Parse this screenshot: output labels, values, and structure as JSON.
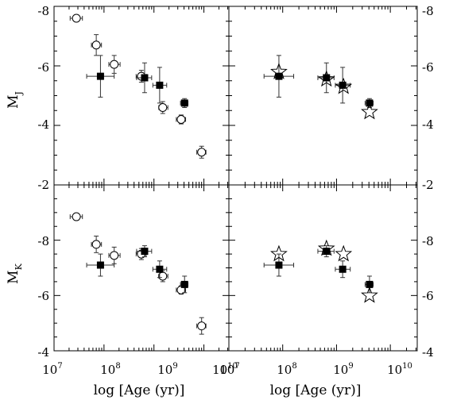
{
  "figure": {
    "xlabel": "log [Age (yr)]",
    "x_tick_labels": [
      "10",
      "10",
      "10",
      "10"
    ],
    "x_tick_exponents": [
      "7",
      "8",
      "9",
      "10"
    ],
    "top_y_tick_labels": [
      "-8",
      "-6",
      "-4",
      "-2"
    ],
    "bottom_y_tick_labels": [
      "-8",
      "-6",
      "-4"
    ],
    "top_ylabel": "M",
    "top_ylabel_sub": "J",
    "bottom_ylabel": "M",
    "bottom_ylabel_sub": "K"
  },
  "chart_data": [
    {
      "type": "scatter",
      "panel": "top-left",
      "x_scale": "log",
      "xlim": [
        10000000,
        31622776601
      ],
      "ylim": [
        -8,
        -2
      ],
      "y_inverted": true,
      "ylabel": "M_J",
      "grid": false,
      "series": [
        {
          "marker": "open-circle",
          "points": [
            {
              "x": 28000000,
              "y": -7.6,
              "xlo": 21000000,
              "xhi": 37000000,
              "ylo": -7.6,
              "yhi": -7.6
            },
            {
              "x": 70000000,
              "y": -6.7,
              "xlo": 56000000,
              "xhi": 89000000,
              "ylo": -7.05,
              "yhi": -6.35
            },
            {
              "x": 160000000,
              "y": -6.05,
              "xlo": 125000000,
              "xhi": 210000000,
              "ylo": -6.35,
              "yhi": -5.75
            },
            {
              "x": 560000000,
              "y": -5.65,
              "xlo": 440000000,
              "xhi": 700000000,
              "ylo": -5.85,
              "yhi": -5.45
            },
            {
              "x": 1500000000,
              "y": -4.6,
              "xlo": 1250000000,
              "xhi": 1900000000,
              "ylo": -4.8,
              "yhi": -4.4
            },
            {
              "x": 3500000000,
              "y": -4.2,
              "xlo": 2800000000,
              "xhi": 4300000000,
              "ylo": -4.35,
              "yhi": -4.05
            },
            {
              "x": 9000000000,
              "y": -3.1,
              "xlo": 7200000000,
              "xhi": 11000000000,
              "ylo": -3.3,
              "yhi": -2.9
            }
          ]
        },
        {
          "marker": "filled-square",
          "points": [
            {
              "x": 85000000,
              "y": -5.65,
              "xlo": 45000000,
              "xhi": 160000000,
              "ylo": -6.35,
              "yhi": -4.95
            },
            {
              "x": 650000000,
              "y": -5.6,
              "xlo": 450000000,
              "xhi": 900000000,
              "ylo": -6.1,
              "yhi": -5.1
            },
            {
              "x": 1300000000,
              "y": -5.35,
              "xlo": 950000000,
              "xhi": 1800000000,
              "ylo": -5.95,
              "yhi": -4.75
            },
            {
              "x": 4100000000,
              "y": -4.75,
              "xlo": 3400000000,
              "xhi": 4800000000,
              "ylo": -4.9,
              "yhi": -4.6
            }
          ]
        }
      ]
    },
    {
      "type": "scatter",
      "panel": "top-right",
      "x_scale": "log",
      "xlim": [
        10000000,
        31622776601
      ],
      "ylim": [
        -8,
        -2
      ],
      "y_inverted": true,
      "ylabel": "M_J",
      "grid": false,
      "series": [
        {
          "marker": "filled-square",
          "points": [
            {
              "x": 85000000,
              "y": -5.65,
              "xlo": 45000000,
              "xhi": 160000000,
              "ylo": -6.35,
              "yhi": -4.95
            },
            {
              "x": 650000000,
              "y": -5.6,
              "xlo": 450000000,
              "xhi": 900000000,
              "ylo": -6.1,
              "yhi": -5.1
            },
            {
              "x": 1300000000,
              "y": -5.35,
              "xlo": 950000000,
              "xhi": 1800000000,
              "ylo": -5.95,
              "yhi": -4.75
            },
            {
              "x": 4100000000,
              "y": -4.75,
              "xlo": 3400000000,
              "xhi": 4800000000,
              "ylo": -4.9,
              "yhi": -4.6
            }
          ]
        },
        {
          "marker": "open-star",
          "points": [
            {
              "x": 85000000,
              "y": -5.8
            },
            {
              "x": 650000000,
              "y": -5.55
            },
            {
              "x": 1350000000,
              "y": -5.3
            },
            {
              "x": 4100000000,
              "y": -4.45
            }
          ]
        }
      ]
    },
    {
      "type": "scatter",
      "panel": "bottom-left",
      "x_scale": "log",
      "xlim": [
        10000000,
        31622776601
      ],
      "ylim": [
        -10,
        -4
      ],
      "y_inverted": true,
      "ylabel": "M_K",
      "grid": false,
      "series": [
        {
          "marker": "open-circle",
          "points": [
            {
              "x": 28000000,
              "y": -8.85,
              "xlo": 21000000,
              "xhi": 37000000,
              "ylo": -8.85,
              "yhi": -8.85
            },
            {
              "x": 70000000,
              "y": -7.85,
              "xlo": 56000000,
              "xhi": 89000000,
              "ylo": -8.15,
              "yhi": -7.55
            },
            {
              "x": 160000000,
              "y": -7.45,
              "xlo": 125000000,
              "xhi": 210000000,
              "ylo": -7.75,
              "yhi": -7.15
            },
            {
              "x": 560000000,
              "y": -7.5,
              "xlo": 440000000,
              "xhi": 700000000,
              "ylo": -7.7,
              "yhi": -7.3
            },
            {
              "x": 1500000000,
              "y": -6.7,
              "xlo": 1250000000,
              "xhi": 1900000000,
              "ylo": -6.9,
              "yhi": -6.5
            },
            {
              "x": 3500000000,
              "y": -6.2,
              "xlo": 2800000000,
              "xhi": 4300000000,
              "ylo": -6.35,
              "yhi": -6.05
            },
            {
              "x": 9000000000,
              "y": -4.9,
              "xlo": 7200000000,
              "xhi": 11000000000,
              "ylo": -5.2,
              "yhi": -4.6
            }
          ]
        },
        {
          "marker": "filled-square",
          "points": [
            {
              "x": 85000000,
              "y": -7.1,
              "xlo": 45000000,
              "xhi": 160000000,
              "ylo": -7.5,
              "yhi": -6.7
            },
            {
              "x": 650000000,
              "y": -7.6,
              "xlo": 450000000,
              "xhi": 900000000,
              "ylo": -7.8,
              "yhi": -7.4
            },
            {
              "x": 1300000000,
              "y": -6.95,
              "xlo": 950000000,
              "xhi": 1800000000,
              "ylo": -7.25,
              "yhi": -6.65
            },
            {
              "x": 4100000000,
              "y": -6.4,
              "xlo": 3400000000,
              "xhi": 4800000000,
              "ylo": -6.7,
              "yhi": -6.1
            }
          ]
        }
      ]
    },
    {
      "type": "scatter",
      "panel": "bottom-right",
      "x_scale": "log",
      "xlim": [
        10000000,
        31622776601
      ],
      "ylim": [
        -10,
        -4
      ],
      "y_inverted": true,
      "ylabel": "M_K",
      "grid": false,
      "series": [
        {
          "marker": "filled-square",
          "points": [
            {
              "x": 85000000,
              "y": -7.1,
              "xlo": 45000000,
              "xhi": 160000000,
              "ylo": -7.5,
              "yhi": -6.7
            },
            {
              "x": 650000000,
              "y": -7.6,
              "xlo": 450000000,
              "xhi": 900000000,
              "ylo": -7.8,
              "yhi": -7.4
            },
            {
              "x": 1300000000,
              "y": -6.95,
              "xlo": 950000000,
              "xhi": 1800000000,
              "ylo": -7.25,
              "yhi": -6.65
            },
            {
              "x": 4100000000,
              "y": -6.4,
              "xlo": 3400000000,
              "xhi": 4800000000,
              "ylo": -6.7,
              "yhi": -6.1
            }
          ]
        },
        {
          "marker": "open-star",
          "points": [
            {
              "x": 85000000,
              "y": -7.5
            },
            {
              "x": 650000000,
              "y": -7.7
            },
            {
              "x": 1350000000,
              "y": -7.5
            },
            {
              "x": 4100000000,
              "y": -6.0
            }
          ]
        }
      ]
    }
  ]
}
